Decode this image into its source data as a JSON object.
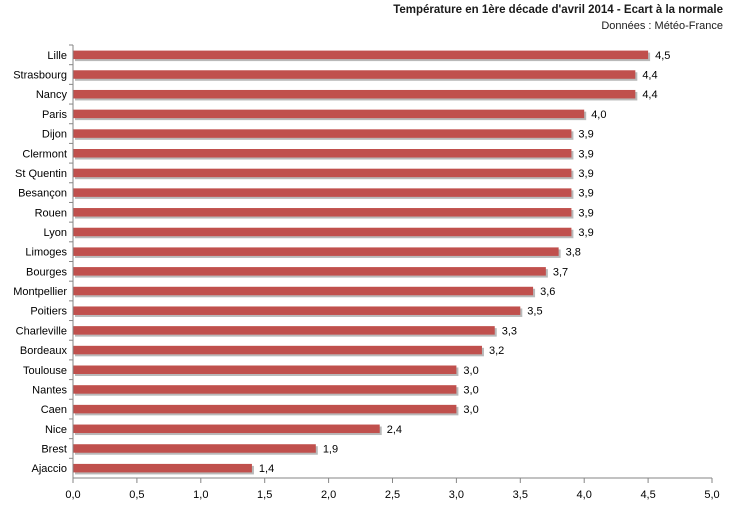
{
  "chart_data": {
    "type": "bar",
    "orientation": "horizontal",
    "title": "Température en 1ère décade d'avril 2014 - Ecart à la normale",
    "subtitle": "Données : Météo-France",
    "categories": [
      "Lille",
      "Strasbourg",
      "Nancy",
      "Paris",
      "Dijon",
      "Clermont",
      "St Quentin",
      "Besançon",
      "Rouen",
      "Lyon",
      "Limoges",
      "Bourges",
      "Montpellier",
      "Poitiers",
      "Charleville",
      "Bordeaux",
      "Toulouse",
      "Nantes",
      "Caen",
      "Nice",
      "Brest",
      "Ajaccio"
    ],
    "values": [
      4.5,
      4.4,
      4.4,
      4.0,
      3.9,
      3.9,
      3.9,
      3.9,
      3.9,
      3.9,
      3.8,
      3.7,
      3.6,
      3.5,
      3.3,
      3.2,
      3.0,
      3.0,
      3.0,
      2.4,
      1.9,
      1.4
    ],
    "value_labels": [
      "4,5",
      "4,4",
      "4,4",
      "4,0",
      "3,9",
      "3,9",
      "3,9",
      "3,9",
      "3,9",
      "3,9",
      "3,8",
      "3,7",
      "3,6",
      "3,5",
      "3,3",
      "3,2",
      "3,0",
      "3,0",
      "3,0",
      "2,4",
      "1,9",
      "1,4"
    ],
    "xlim": [
      0,
      5
    ],
    "xticks": [
      0,
      0.5,
      1,
      1.5,
      2,
      2.5,
      3,
      3.5,
      4,
      4.5,
      5
    ],
    "xtick_labels": [
      "0,0",
      "0,5",
      "1,0",
      "1,5",
      "2,0",
      "2,5",
      "3,0",
      "3,5",
      "4,0",
      "4,5",
      "5,0"
    ],
    "grid": false,
    "legend": "none",
    "bar_color": "#c0504d",
    "bar_shadow_color": "#b9b9b9"
  }
}
